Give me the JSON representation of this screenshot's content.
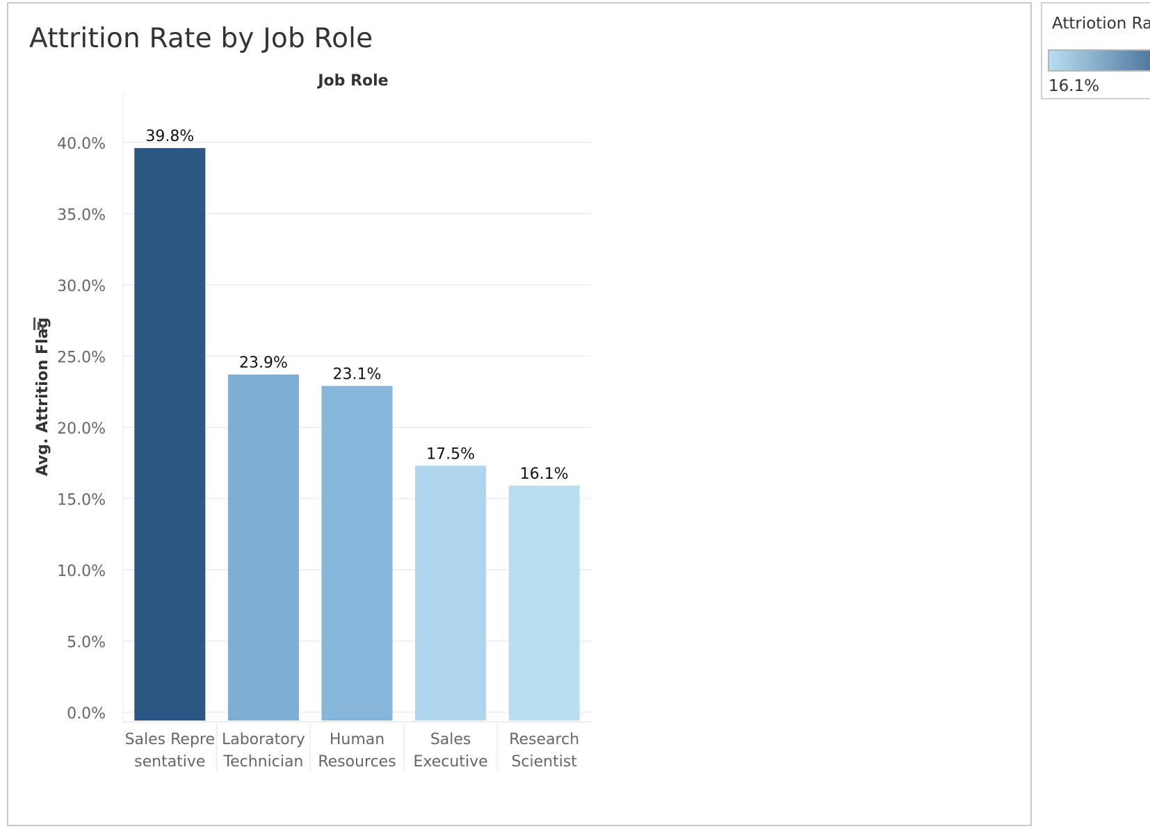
{
  "chart_data": {
    "type": "bar",
    "title": "Attrition Rate by Job Role",
    "column_header": "Job Role",
    "ylabel": "Avg. Attrition Flag",
    "xlabel": "",
    "categories_lines": [
      [
        "Sales Repre",
        "sentative"
      ],
      [
        "Laboratory",
        "Technician"
      ],
      [
        "Human",
        "Resources"
      ],
      [
        "Sales",
        "Executive"
      ],
      [
        "Research",
        "Scientist"
      ]
    ],
    "values": [
      39.8,
      23.9,
      23.1,
      17.5,
      16.1
    ],
    "value_labels": [
      "39.8%",
      "23.9%",
      "23.1%",
      "17.5%",
      "16.1%"
    ],
    "bar_colors": [
      "#2b5782",
      "#7faed5",
      "#88b5da",
      "#afd6ec",
      "#b9ddf1"
    ],
    "ylim": [
      0,
      40
    ],
    "yticks": [
      0,
      5,
      10,
      15,
      20,
      25,
      30,
      35,
      40
    ],
    "ytick_labels": [
      "0.0%",
      "5.0%",
      "10.0%",
      "15.0%",
      "20.0%",
      "25.0%",
      "30.0%",
      "35.0%",
      "40.0%"
    ],
    "grid": true,
    "legend": {
      "title": "Attriotion Rate",
      "min_label": "16.1%",
      "placement": "top-right",
      "colors": [
        "#b9ddf1",
        "#2b5782"
      ]
    }
  }
}
